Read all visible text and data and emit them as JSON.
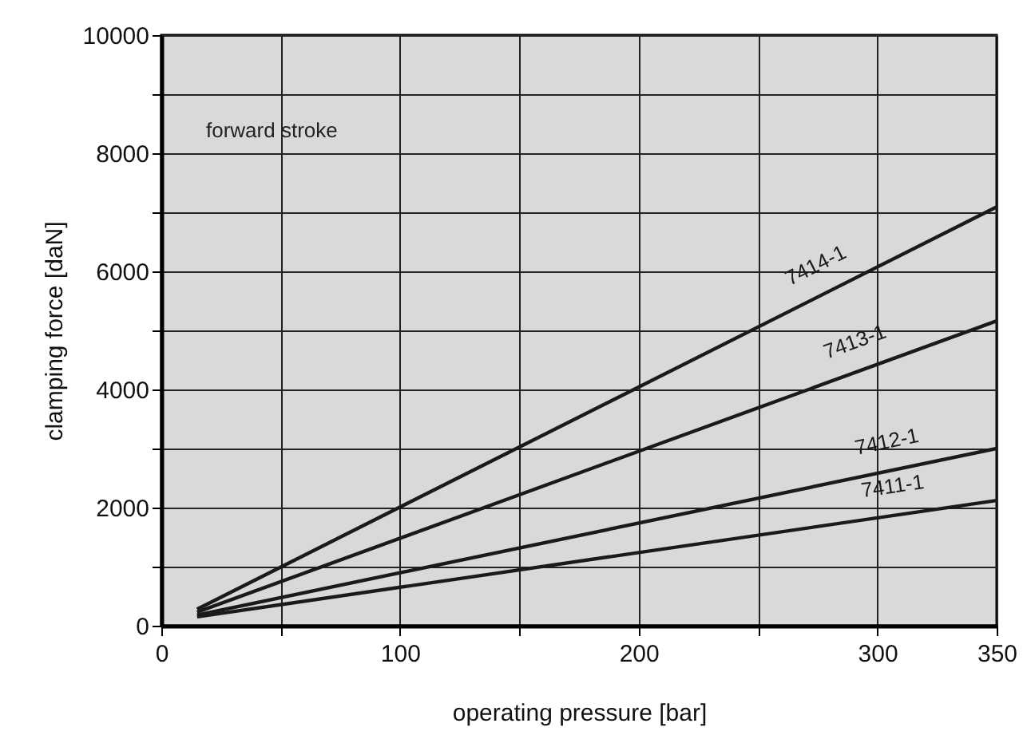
{
  "chart_data": {
    "type": "line",
    "xlabel": "operating pressure [bar]",
    "ylabel": "clamping force [daN]",
    "annotations": [
      "forward stroke"
    ],
    "x": [
      15,
      350
    ],
    "series": [
      {
        "name": "7414-1",
        "color": "#1a1a1a",
        "values": [
          280,
          7090
        ]
      },
      {
        "name": "7413-1",
        "color": "#1a1a1a",
        "values": [
          230,
          5160
        ]
      },
      {
        "name": "7412-1",
        "color": "#1a1a1a",
        "values": [
          180,
          3000
        ]
      },
      {
        "name": "7411-1",
        "color": "#1a1a1a",
        "values": [
          150,
          2120
        ]
      }
    ],
    "xlim": [
      0,
      350
    ],
    "ylim": [
      0,
      10000
    ],
    "xticks": [
      0,
      {
        "value": 50,
        "label": null
      },
      100,
      {
        "value": 150,
        "label": null
      },
      200,
      {
        "value": 250,
        "label": null
      },
      300,
      350
    ],
    "yticks": [
      0,
      {
        "value": 1000,
        "label": null
      },
      2000,
      {
        "value": 3000,
        "label": null
      },
      4000,
      {
        "value": 5000,
        "label": null
      },
      6000,
      {
        "value": 7000,
        "label": null
      },
      8000,
      {
        "value": 9000,
        "label": null
      },
      10000
    ],
    "grid": true,
    "marker": "none",
    "line_style": "solid"
  }
}
